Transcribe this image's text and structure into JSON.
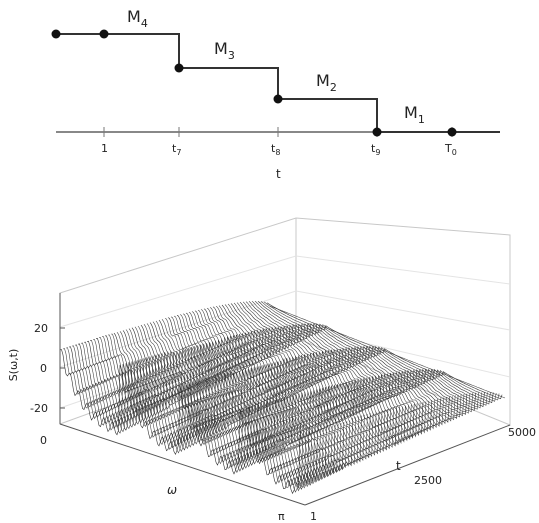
{
  "timeline": {
    "segments": [
      {
        "label": "M",
        "sub": "4"
      },
      {
        "label": "M",
        "sub": "3"
      },
      {
        "label": "M",
        "sub": "2"
      },
      {
        "label": "M",
        "sub": "1"
      }
    ],
    "ticks": [
      {
        "main": "1",
        "sub": ""
      },
      {
        "main": "t",
        "sub": "7"
      },
      {
        "main": "t",
        "sub": "8"
      },
      {
        "main": "t",
        "sub": "9"
      },
      {
        "main": "T",
        "sub": "0"
      }
    ],
    "axis_label": "t"
  },
  "surface_plot": {
    "z_label": "S(ω,t)",
    "z_ticks": [
      "20",
      "0",
      "-20"
    ],
    "omega_ticks": [
      "0",
      "π"
    ],
    "omega_label": "ω",
    "t_ticks": [
      "1",
      "2500",
      "5000"
    ],
    "t_label": "t"
  }
}
